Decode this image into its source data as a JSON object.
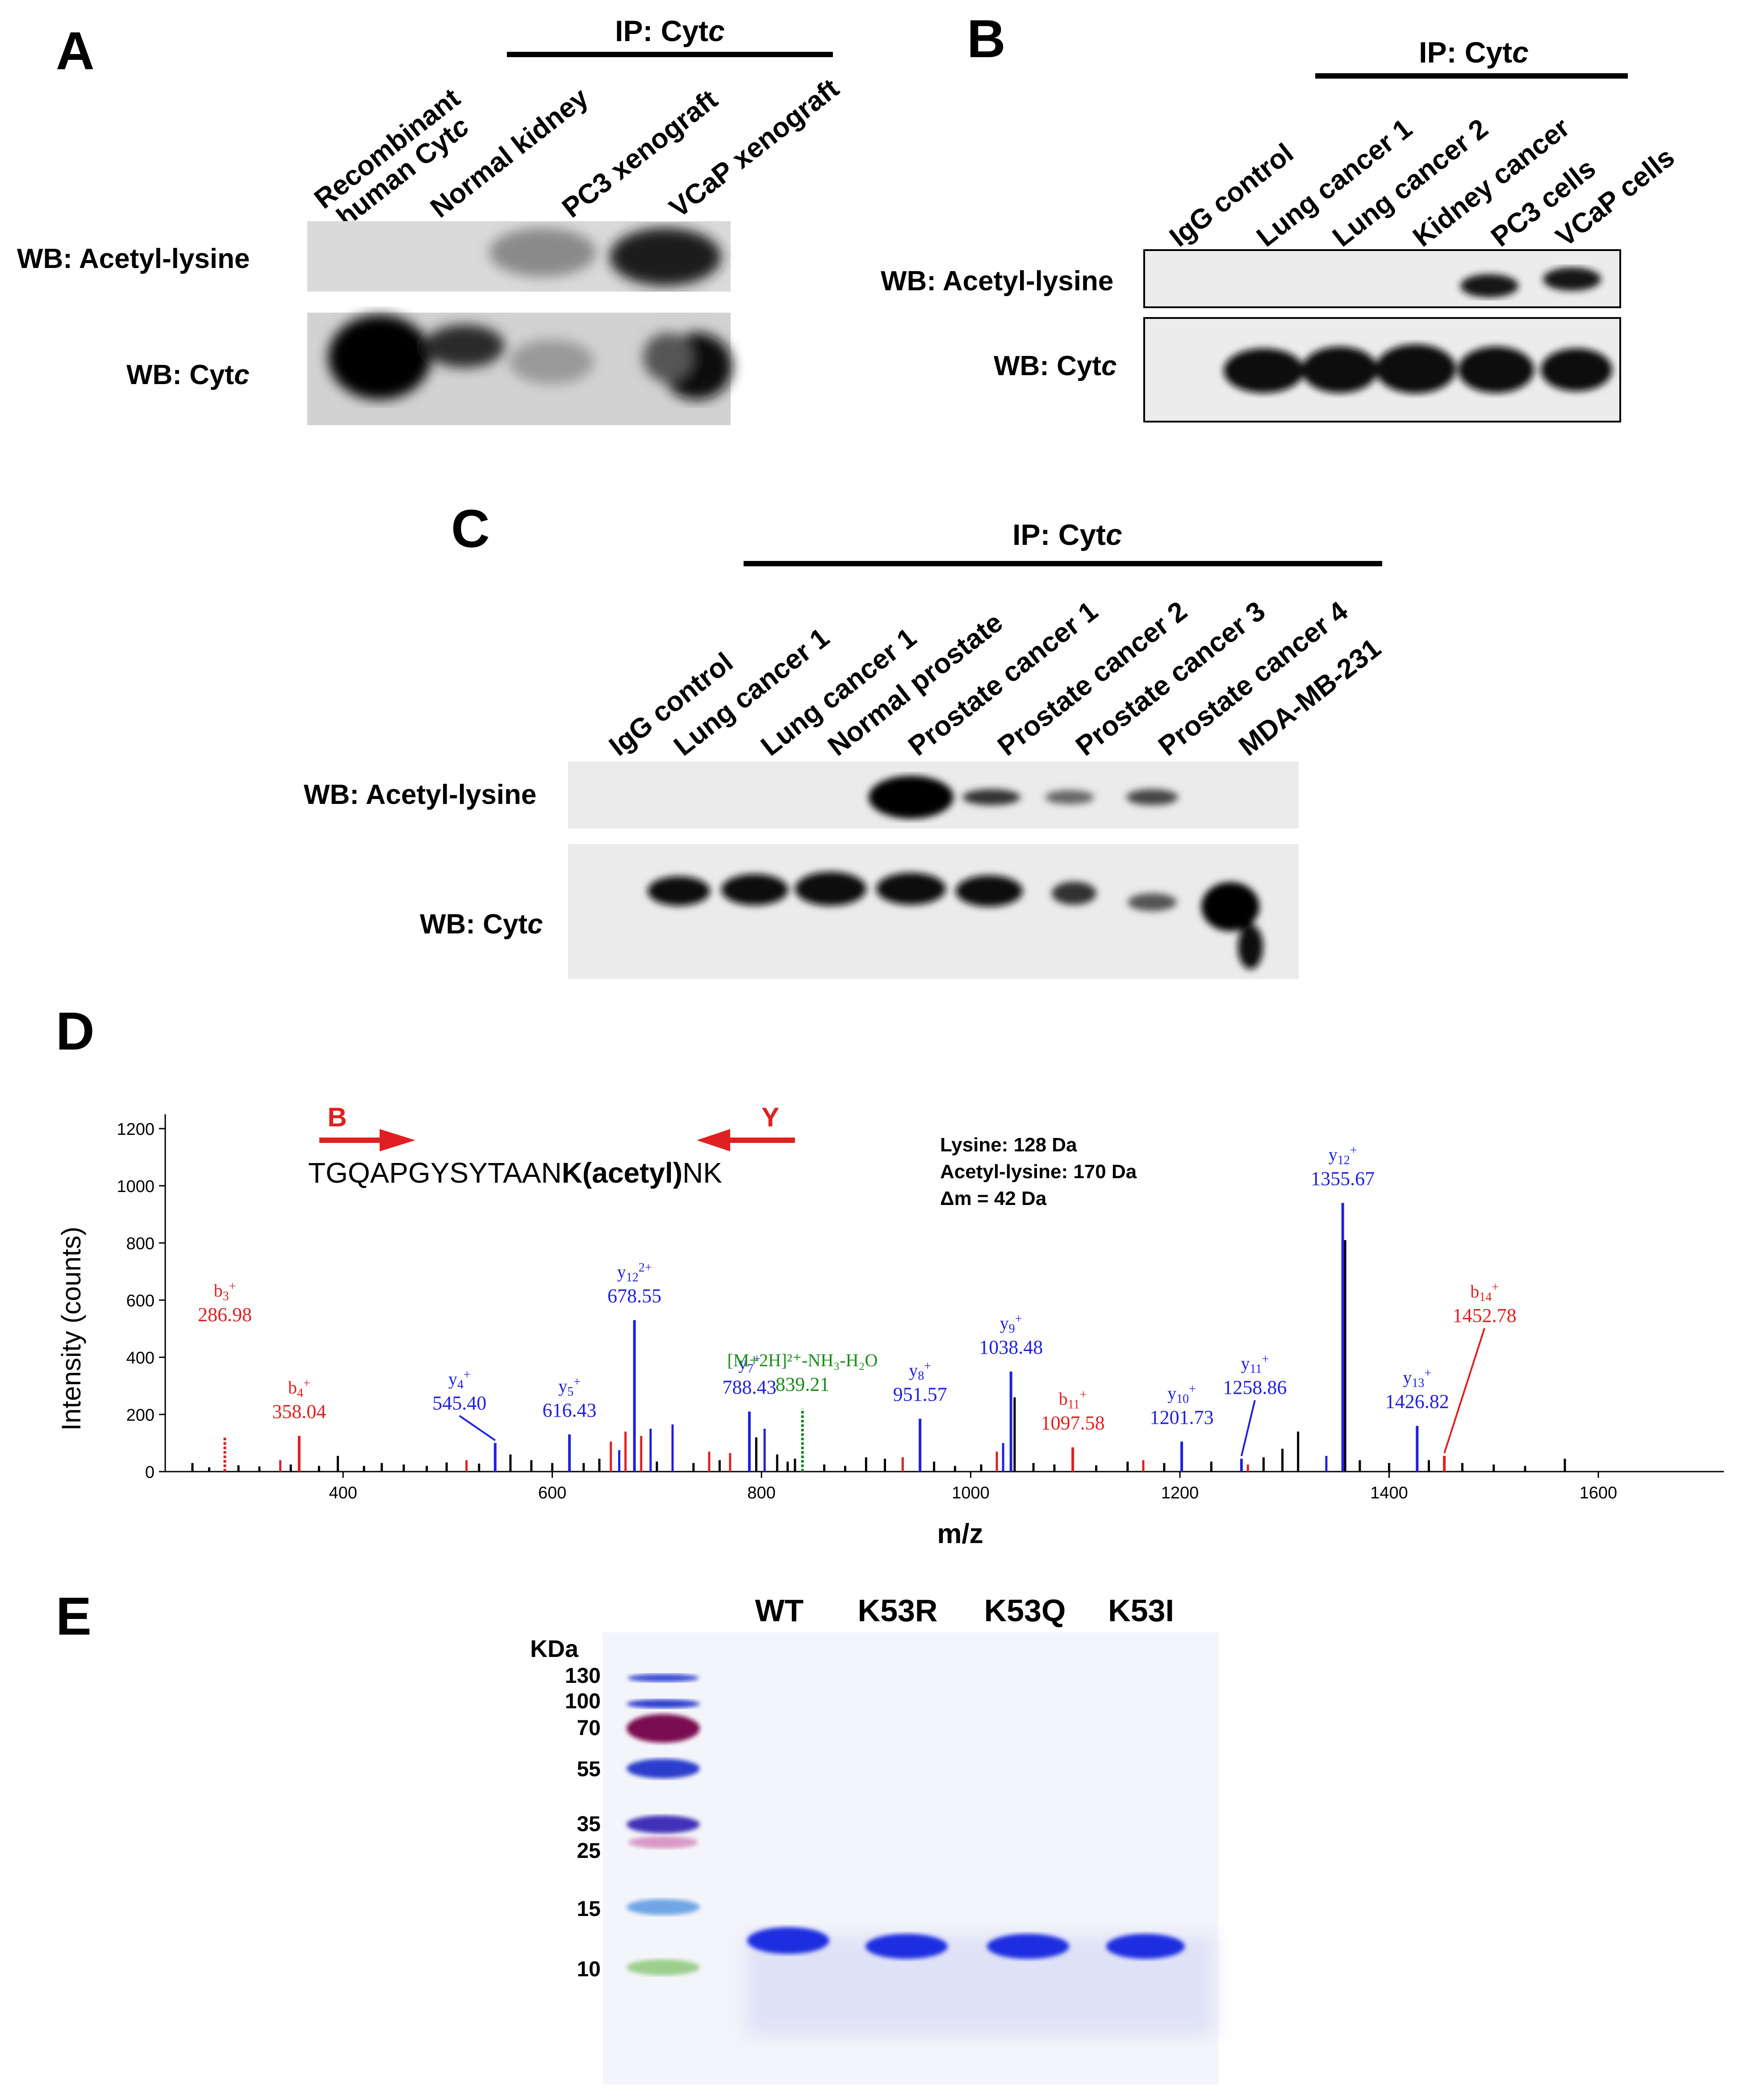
{
  "panel_A": {
    "letter": "A",
    "ip_label": "IP: Cyt",
    "ip_label_italic": "c",
    "lanes": [
      "Recombinant",
      "human Cyt",
      "c",
      "Normal kidney",
      "PC3 xenograft",
      "VCaP xenograft"
    ],
    "wb1": "WB: Acetyl-lysine",
    "wb2": "WB: Cyt",
    "wb2_italic": "c"
  },
  "panel_B": {
    "letter": "B",
    "ip_label": "IP: Cyt",
    "ip_label_italic": "c",
    "lanes": [
      "IgG control",
      "Lung cancer 1",
      "Lung cancer 2",
      "Kidney cancer",
      "PC3 cells",
      "VCaP cells"
    ],
    "wb1": "WB: Acetyl-lysine",
    "wb2": "WB: Cyt",
    "wb2_italic": "c"
  },
  "panel_C": {
    "letter": "C",
    "ip_label": "IP: Cyt",
    "ip_label_italic": "c",
    "lanes": [
      "IgG control",
      "Lung cancer 1",
      "Lung cancer 1",
      "Normal prostate",
      "Prostate cancer 1",
      "Prostate cancer 2",
      "Prostate cancer 3",
      "Prostate cancer 4",
      "MDA-MB-231"
    ],
    "wb1": "WB: Acetyl-lysine",
    "wb2": "WB: Cyt",
    "wb2_italic": "c"
  },
  "panel_D": {
    "letter": "D",
    "b_label": "B",
    "y_label": "Y",
    "peptide_pre": "TGQAPGYSYTAAN",
    "peptide_mod": "K(acetyl)",
    "peptide_post": "NK",
    "info_lines": [
      "Lysine: 128 Da",
      "Acetyl-lysine: 170 Da",
      "Δm = 42 Da"
    ],
    "colors": {
      "b_ion": "#e02020",
      "y_ion": "#2020e0",
      "precursor": "#1a8a1a",
      "other": "#000000"
    },
    "chart_data": {
      "type": "bar",
      "xlabel": "m/z",
      "ylabel": "Intensity (counts)",
      "xlim": [
        230,
        1720
      ],
      "ylim": [
        0,
        1250
      ],
      "xticks": [
        400,
        600,
        800,
        1000,
        1200,
        1400,
        1600
      ],
      "yticks": [
        0,
        200,
        400,
        600,
        800,
        1000,
        1200
      ],
      "labeled_peaks": [
        {
          "ion": "b",
          "sub": "3",
          "sup": "+",
          "mz": 286.98,
          "mz_label": "286.98",
          "intensity": 120
        },
        {
          "ion": "b",
          "sub": "4",
          "sup": "+",
          "mz": 358.04,
          "mz_label": "358.04",
          "intensity": 125
        },
        {
          "ion": "y",
          "sub": "4",
          "sup": "+",
          "mz": 545.4,
          "mz_label": "545.40",
          "intensity": 100
        },
        {
          "ion": "y",
          "sub": "5",
          "sup": "+",
          "mz": 616.43,
          "mz_label": "616.43",
          "intensity": 130
        },
        {
          "ion": "y",
          "sub": "12",
          "sup": "2+",
          "mz": 678.55,
          "mz_label": "678.55",
          "intensity": 530
        },
        {
          "ion": "y",
          "sub": "7",
          "sup": "+",
          "mz": 788.43,
          "mz_label": "788.43",
          "intensity": 210
        },
        {
          "ion": "p",
          "text": "[M+2H]²⁺-NH₃-H₂O",
          "mz": 839.21,
          "mz_label": "839.21",
          "intensity": 220
        },
        {
          "ion": "y",
          "sub": "8",
          "sup": "+",
          "mz": 951.57,
          "mz_label": "951.57",
          "intensity": 185
        },
        {
          "ion": "y",
          "sub": "9",
          "sup": "+",
          "mz": 1038.48,
          "mz_label": "1038.48",
          "intensity": 350
        },
        {
          "ion": "b",
          "sub": "11",
          "sup": "+",
          "mz": 1097.58,
          "mz_label": "1097.58",
          "intensity": 85
        },
        {
          "ion": "y",
          "sub": "10",
          "sup": "+",
          "mz": 1201.73,
          "mz_label": "1201.73",
          "intensity": 105
        },
        {
          "ion": "y",
          "sub": "11",
          "sup": "+",
          "mz": 1258.86,
          "mz_label": "1258.86",
          "intensity": 45
        },
        {
          "ion": "y",
          "sub": "12",
          "sup": "+",
          "mz": 1355.67,
          "mz_label": "1355.67",
          "intensity": 940
        },
        {
          "ion": "y",
          "sub": "13",
          "sup": "+",
          "mz": 1426.82,
          "mz_label": "1426.82",
          "intensity": 160
        },
        {
          "ion": "b",
          "sub": "14",
          "sup": "+",
          "mz": 1452.78,
          "mz_label": "1452.78",
          "intensity": 55
        }
      ],
      "other_peaks": [
        {
          "mz": 256,
          "i": 30,
          "c": "k"
        },
        {
          "mz": 272,
          "i": 15,
          "c": "k"
        },
        {
          "mz": 300,
          "i": 22,
          "c": "k"
        },
        {
          "mz": 320,
          "i": 18,
          "c": "k"
        },
        {
          "mz": 340,
          "i": 40,
          "c": "r"
        },
        {
          "mz": 350,
          "i": 25,
          "c": "k"
        },
        {
          "mz": 377,
          "i": 20,
          "c": "k"
        },
        {
          "mz": 395,
          "i": 55,
          "c": "k"
        },
        {
          "mz": 420,
          "i": 20,
          "c": "k"
        },
        {
          "mz": 437,
          "i": 30,
          "c": "k"
        },
        {
          "mz": 458,
          "i": 25,
          "c": "k"
        },
        {
          "mz": 480,
          "i": 20,
          "c": "k"
        },
        {
          "mz": 499,
          "i": 32,
          "c": "k"
        },
        {
          "mz": 518,
          "i": 40,
          "c": "r"
        },
        {
          "mz": 530,
          "i": 28,
          "c": "k"
        },
        {
          "mz": 560,
          "i": 60,
          "c": "k"
        },
        {
          "mz": 580,
          "i": 40,
          "c": "k"
        },
        {
          "mz": 600,
          "i": 30,
          "c": "k"
        },
        {
          "mz": 630,
          "i": 30,
          "c": "k"
        },
        {
          "mz": 645,
          "i": 45,
          "c": "k"
        },
        {
          "mz": 656,
          "i": 105,
          "c": "r"
        },
        {
          "mz": 664,
          "i": 75,
          "c": "b"
        },
        {
          "mz": 670,
          "i": 140,
          "c": "r"
        },
        {
          "mz": 685,
          "i": 125,
          "c": "r"
        },
        {
          "mz": 694,
          "i": 150,
          "c": "b"
        },
        {
          "mz": 700,
          "i": 35,
          "c": "k"
        },
        {
          "mz": 715,
          "i": 165,
          "c": "b"
        },
        {
          "mz": 735,
          "i": 30,
          "c": "k"
        },
        {
          "mz": 750,
          "i": 70,
          "c": "r"
        },
        {
          "mz": 760,
          "i": 40,
          "c": "k"
        },
        {
          "mz": 770,
          "i": 65,
          "c": "r"
        },
        {
          "mz": 795,
          "i": 120,
          "c": "k"
        },
        {
          "mz": 803,
          "i": 150,
          "c": "b"
        },
        {
          "mz": 815,
          "i": 60,
          "c": "k"
        },
        {
          "mz": 825,
          "i": 35,
          "c": "k"
        },
        {
          "mz": 832,
          "i": 45,
          "c": "k"
        },
        {
          "mz": 860,
          "i": 25,
          "c": "k"
        },
        {
          "mz": 880,
          "i": 20,
          "c": "k"
        },
        {
          "mz": 900,
          "i": 50,
          "c": "k"
        },
        {
          "mz": 918,
          "i": 45,
          "c": "k"
        },
        {
          "mz": 935,
          "i": 50,
          "c": "r"
        },
        {
          "mz": 965,
          "i": 35,
          "c": "k"
        },
        {
          "mz": 985,
          "i": 20,
          "c": "k"
        },
        {
          "mz": 1010,
          "i": 25,
          "c": "k"
        },
        {
          "mz": 1025,
          "i": 70,
          "c": "r"
        },
        {
          "mz": 1031,
          "i": 100,
          "c": "b"
        },
        {
          "mz": 1042,
          "i": 260,
          "c": "k"
        },
        {
          "mz": 1060,
          "i": 30,
          "c": "k"
        },
        {
          "mz": 1080,
          "i": 25,
          "c": "k"
        },
        {
          "mz": 1120,
          "i": 22,
          "c": "k"
        },
        {
          "mz": 1150,
          "i": 35,
          "c": "k"
        },
        {
          "mz": 1165,
          "i": 40,
          "c": "r"
        },
        {
          "mz": 1185,
          "i": 30,
          "c": "k"
        },
        {
          "mz": 1230,
          "i": 35,
          "c": "k"
        },
        {
          "mz": 1265,
          "i": 25,
          "c": "r"
        },
        {
          "mz": 1280,
          "i": 50,
          "c": "k"
        },
        {
          "mz": 1298,
          "i": 80,
          "c": "k"
        },
        {
          "mz": 1313,
          "i": 140,
          "c": "k"
        },
        {
          "mz": 1340,
          "i": 55,
          "c": "b"
        },
        {
          "mz": 1358,
          "i": 810,
          "c": "k"
        },
        {
          "mz": 1372,
          "i": 40,
          "c": "k"
        },
        {
          "mz": 1400,
          "i": 30,
          "c": "k"
        },
        {
          "mz": 1438,
          "i": 40,
          "c": "k"
        },
        {
          "mz": 1470,
          "i": 30,
          "c": "k"
        },
        {
          "mz": 1500,
          "i": 25,
          "c": "k"
        },
        {
          "mz": 1530,
          "i": 20,
          "c": "k"
        },
        {
          "mz": 1568,
          "i": 45,
          "c": "k"
        }
      ]
    }
  },
  "panel_E": {
    "letter": "E",
    "lanes": [
      "WT",
      "K53R",
      "K53Q",
      "K53I"
    ],
    "kda_title": "KDa",
    "markers": [
      "130",
      "100",
      "70",
      "55",
      "35",
      "25",
      "15",
      "10"
    ]
  }
}
